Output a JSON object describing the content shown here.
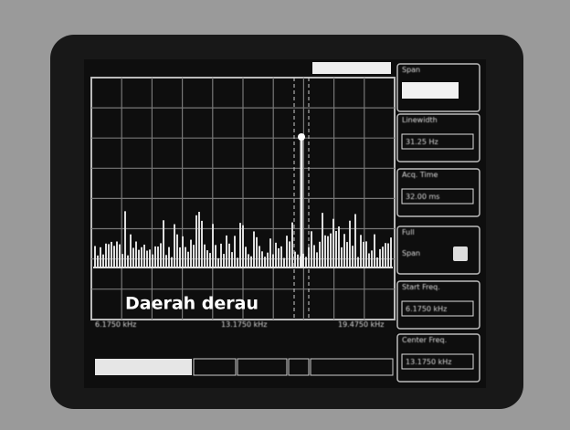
{
  "annotation": "Daerah derau",
  "panel": [
    {
      "label": "Span",
      "value": ""
    },
    {
      "label": "Linewidth",
      "value": "31.25 Hz"
    },
    {
      "label": "Acq. Time",
      "value": "32.00 ms"
    },
    {
      "label": "Full",
      "value": "Span"
    },
    {
      "label": "Start Freq.",
      "value": "6.1750 kHz"
    },
    {
      "label": "Center Freq.",
      "value": "13.1750 kHz"
    }
  ],
  "axis": [
    "6.1750 kHz",
    "13.1750 kHz",
    "19.4750 kHz"
  ]
}
